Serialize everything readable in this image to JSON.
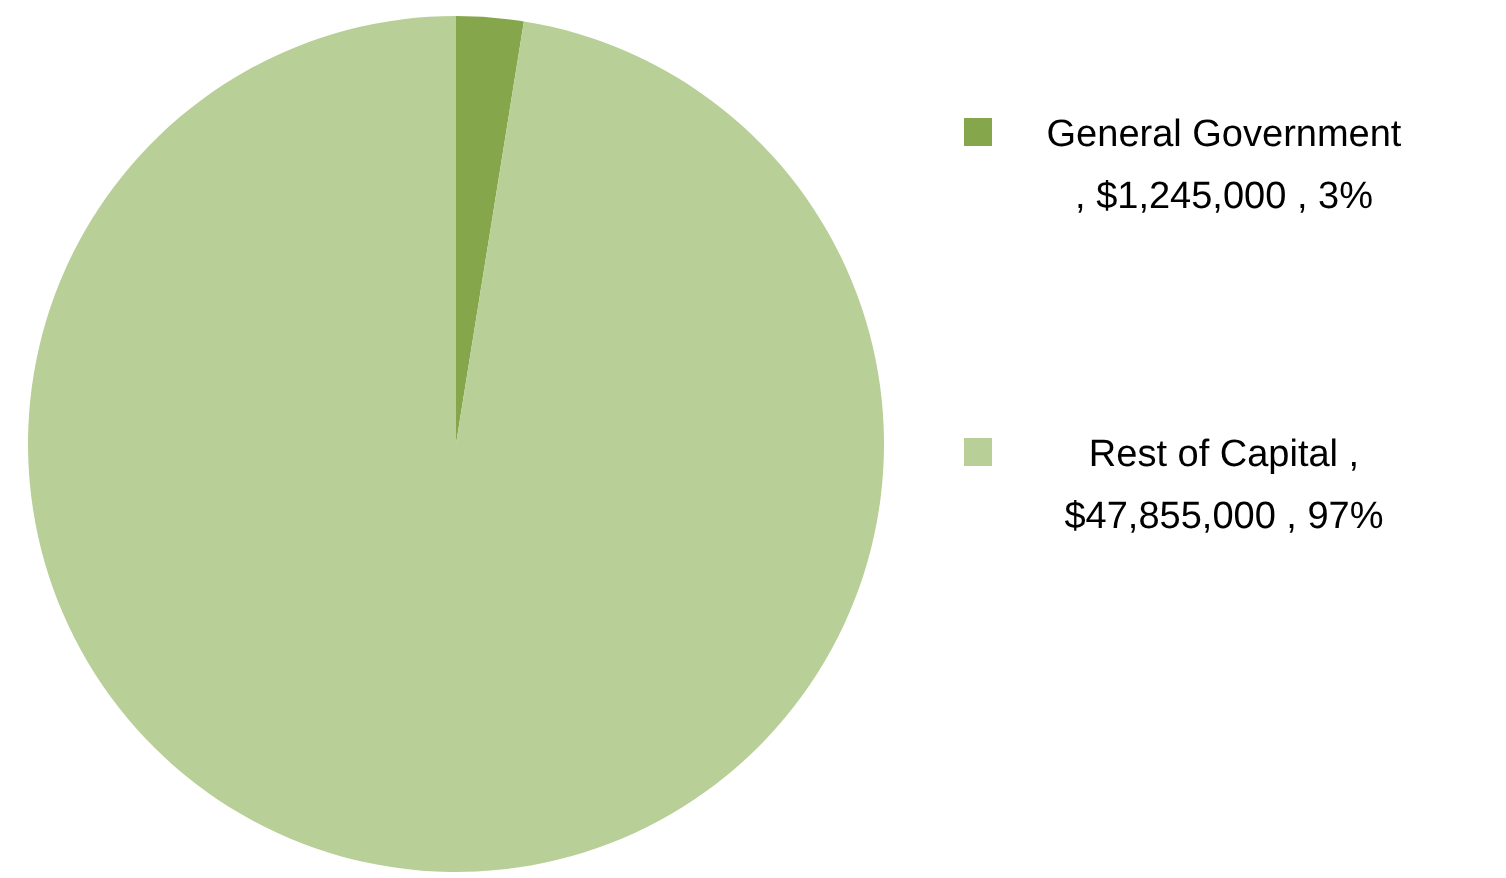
{
  "chart_data": {
    "type": "pie",
    "categories": [
      "General Government , $1,245,000 , 3%",
      "Rest of Capital , $47,855,000 , 97%"
    ],
    "values": [
      1245000,
      47855000
    ],
    "colors": [
      "#86a64c",
      "#b8cf97"
    ],
    "legend": "right"
  }
}
